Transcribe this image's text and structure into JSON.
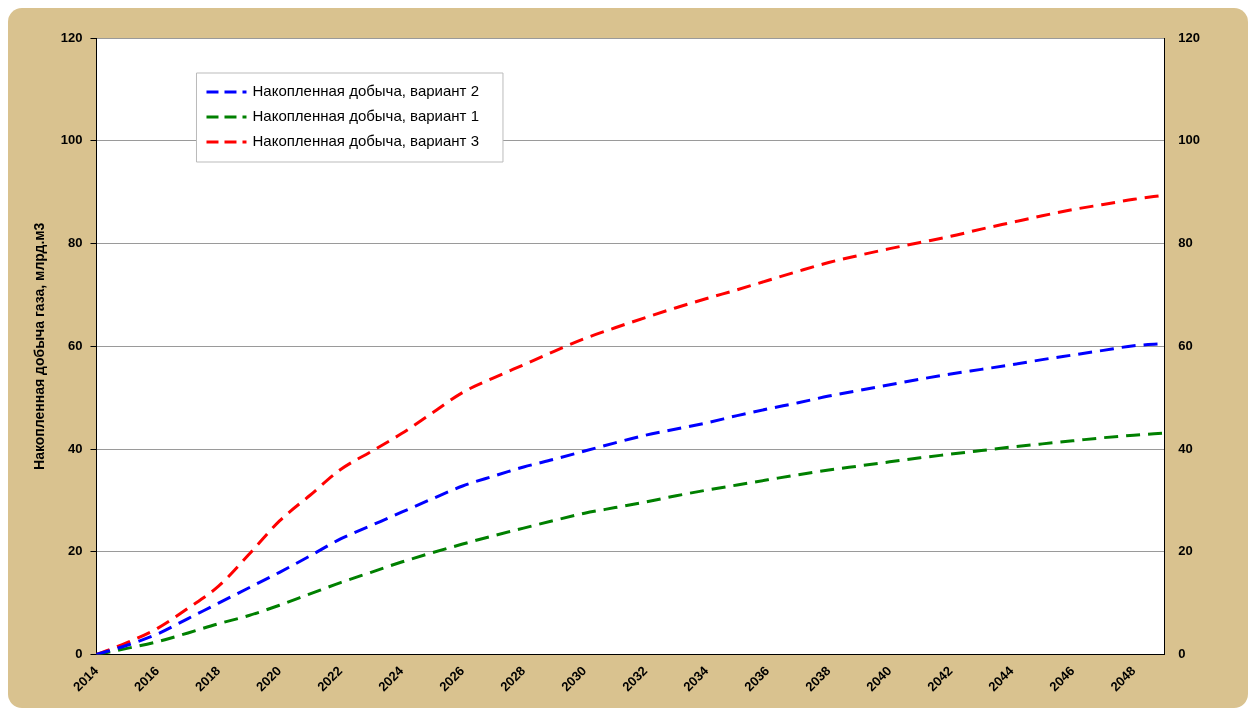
{
  "chart_data": {
    "type": "line",
    "ylabel": "Накопленная добыча газа, млрд.м3",
    "categories": [
      "2014",
      null,
      "2016",
      null,
      "2018",
      null,
      "2020",
      null,
      "2022",
      null,
      "2024",
      null,
      "2026",
      null,
      "2028",
      null,
      "2030",
      null,
      "2032",
      null,
      "2034",
      null,
      "2036",
      null,
      "2038",
      null,
      "2040",
      null,
      "2042",
      null,
      "2044",
      null,
      "2046",
      null,
      "2048",
      null
    ],
    "series": [
      {
        "name": "Накопленная добыча, вариант 2",
        "color": "#0000ff",
        "values": [
          0,
          1.8,
          4,
          7,
          10,
          13,
          16,
          19.2,
          22.5,
          25.1,
          27.7,
          30.3,
          32.8,
          34.7,
          36.5,
          38,
          39.6,
          41.2,
          42.7,
          43.9,
          45.1,
          46.5,
          47.8,
          49,
          50.3,
          51.4,
          52.5,
          53.6,
          54.6,
          55.5,
          56.4,
          57.4,
          58.3,
          59.2,
          60.1,
          60.5
        ]
      },
      {
        "name": "Накопленная добыча, вариант 1",
        "color": "#008000",
        "values": [
          0,
          1.2,
          2.5,
          4.2,
          6,
          7.6,
          9.6,
          11.8,
          14,
          16,
          18,
          19.8,
          21.5,
          23.1,
          24.6,
          26.1,
          27.5,
          28.6,
          29.7,
          30.9,
          32,
          33,
          34,
          35,
          35.9,
          36.7,
          37.5,
          38.3,
          39,
          39.7,
          40.4,
          41,
          41.6,
          42.2,
          42.7,
          43.1
        ]
      },
      {
        "name": "Накопленная добыча, вариант 3",
        "color": "#ff0000",
        "values": [
          0,
          2.3,
          5.1,
          9,
          13.3,
          19.5,
          26,
          31,
          36,
          39.5,
          43,
          47,
          51,
          53.8,
          56.4,
          59,
          61.5,
          63.6,
          65.6,
          67.5,
          69.3,
          71,
          72.8,
          74.6,
          76.3,
          77.7,
          79,
          80.2,
          81.4,
          82.8,
          84.1,
          85.4,
          86.6,
          87.6,
          88.6,
          89.4
        ]
      }
    ],
    "ylim": [
      0,
      120
    ],
    "yticks": [
      0,
      20,
      40,
      60,
      80,
      100,
      120
    ],
    "y2lim": [
      0,
      120
    ],
    "y2ticks": [
      0,
      20,
      40,
      60,
      80,
      100,
      120
    ],
    "grid": "y",
    "legend": "top left",
    "marker": "none",
    "line_style": "dashed"
  }
}
